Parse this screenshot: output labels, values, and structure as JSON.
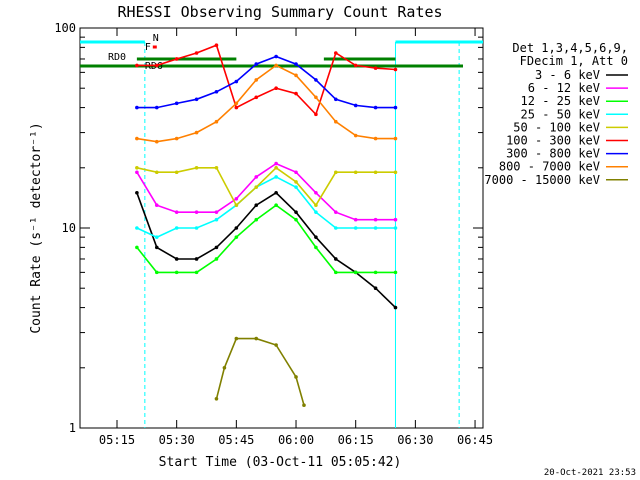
{
  "footer": {
    "timestamp": "20-Oct-2021 23:53"
  },
  "chart_data": {
    "type": "line",
    "title": "RHESSI Observing Summary Count Rates",
    "xlabel": "Start Time (03-Oct-11 05:05:42)",
    "ylabel": "Count Rate (s⁻¹ detector⁻¹)",
    "y_scale": "log",
    "ylim": [
      1,
      100
    ],
    "xlim": [
      "05:05:42",
      "06:47:00"
    ],
    "x_ticks": [
      "05:15",
      "05:30",
      "05:45",
      "06:00",
      "06:15",
      "06:30",
      "06:45"
    ],
    "y_ticks": [
      "1",
      "10",
      "100"
    ],
    "legend": {
      "placement": "right",
      "header": [
        "Det 1,3,4,5,6,9,",
        "FDecim 1, Att 0"
      ]
    },
    "flags": [
      {
        "label": "N",
        "color": "#00ffff"
      },
      {
        "label": "F",
        "color": "#ff0000"
      },
      {
        "label": "RD0",
        "color": "#008000"
      },
      {
        "label": "RD6",
        "color": "#008000"
      }
    ],
    "series": [
      {
        "name": "3 - 6 keV",
        "color": "#000000",
        "times": [
          "05:20",
          "05:25",
          "05:30",
          "05:35",
          "05:40",
          "05:45",
          "05:50",
          "05:55",
          "06:00",
          "06:05",
          "06:10",
          "06:15",
          "06:20",
          "06:25"
        ],
        "values": [
          15,
          8,
          7,
          7,
          8,
          10,
          13,
          15,
          12,
          9,
          7,
          6,
          5,
          4
        ]
      },
      {
        "name": "6 - 12 keV",
        "color": "#ff00ff",
        "times": [
          "05:20",
          "05:25",
          "05:30",
          "05:35",
          "05:40",
          "05:45",
          "05:50",
          "05:55",
          "06:00",
          "06:05",
          "06:10",
          "06:15",
          "06:20",
          "06:25"
        ],
        "values": [
          19,
          13,
          12,
          12,
          12,
          14,
          18,
          21,
          19,
          15,
          12,
          11,
          11,
          11
        ]
      },
      {
        "name": "12 - 25 keV",
        "color": "#00ff00",
        "times": [
          "05:20",
          "05:25",
          "05:30",
          "05:35",
          "05:40",
          "05:45",
          "05:50",
          "05:55",
          "06:00",
          "06:05",
          "06:10",
          "06:15",
          "06:20",
          "06:25"
        ],
        "values": [
          8,
          6,
          6,
          6,
          7,
          9,
          11,
          13,
          11,
          8,
          6,
          6,
          6,
          6
        ]
      },
      {
        "name": "25 - 50 keV",
        "color": "#00ffff",
        "times": [
          "05:20",
          "05:25",
          "05:30",
          "05:35",
          "05:40",
          "05:45",
          "05:50",
          "05:55",
          "06:00",
          "06:05",
          "06:10",
          "06:15",
          "06:20",
          "06:25"
        ],
        "values": [
          10,
          9,
          10,
          10,
          11,
          13,
          16,
          18,
          16,
          12,
          10,
          10,
          10,
          10
        ]
      },
      {
        "name": "50 - 100 keV",
        "color": "#cccc00",
        "times": [
          "05:20",
          "05:25",
          "05:30",
          "05:35",
          "05:40",
          "05:45",
          "05:50",
          "05:55",
          "06:00",
          "06:05",
          "06:10",
          "06:15",
          "06:20",
          "06:25"
        ],
        "values": [
          20,
          19,
          19,
          20,
          20,
          13,
          16,
          20,
          17,
          13,
          19,
          19,
          19,
          19
        ]
      },
      {
        "name": "100 - 300 keV",
        "color": "#ff0000",
        "times": [
          "05:20",
          "05:25",
          "05:30",
          "05:35",
          "05:40",
          "05:45",
          "05:50",
          "05:55",
          "06:00",
          "06:05",
          "06:10",
          "06:15",
          "06:20",
          "06:25"
        ],
        "values": [
          65,
          65,
          70,
          75,
          82,
          40,
          45,
          50,
          47,
          37,
          75,
          65,
          63,
          62
        ]
      },
      {
        "name": "300 - 800 keV",
        "color": "#0000ff",
        "times": [
          "05:20",
          "05:25",
          "05:30",
          "05:35",
          "05:40",
          "05:45",
          "05:50",
          "05:55",
          "06:00",
          "06:05",
          "06:10",
          "06:15",
          "06:20",
          "06:25"
        ],
        "values": [
          40,
          40,
          42,
          44,
          48,
          54,
          66,
          72,
          66,
          55,
          44,
          41,
          40,
          40
        ]
      },
      {
        "name": "800 - 7000 keV",
        "color": "#ff8000",
        "times": [
          "05:20",
          "05:25",
          "05:30",
          "05:35",
          "05:40",
          "05:45",
          "05:50",
          "05:55",
          "06:00",
          "06:05",
          "06:10",
          "06:15",
          "06:20",
          "06:25"
        ],
        "values": [
          28,
          27,
          28,
          30,
          34,
          42,
          55,
          65,
          58,
          45,
          34,
          29,
          28,
          28
        ]
      },
      {
        "name": "7000 - 15000 keV",
        "color": "#808000",
        "times": [
          "05:40",
          "05:42",
          "05:45",
          "05:50",
          "05:55",
          "06:00",
          "06:02"
        ],
        "values": [
          1.4,
          2.0,
          2.8,
          2.8,
          2.6,
          1.8,
          1.3
        ]
      }
    ]
  }
}
